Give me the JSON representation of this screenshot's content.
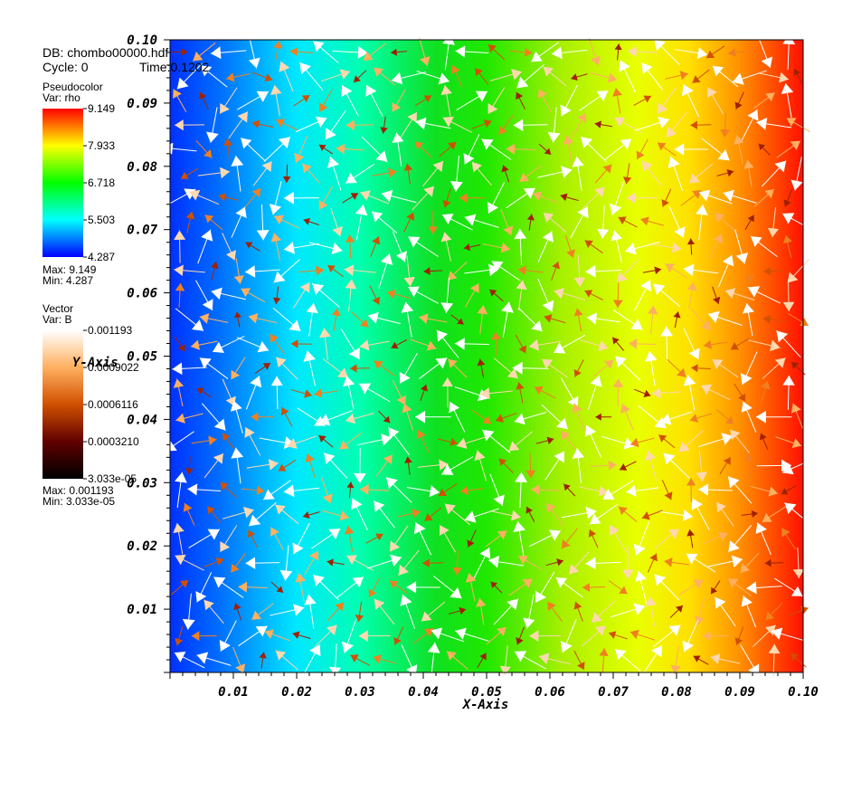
{
  "header": {
    "db": "DB: chombo00000.hdf",
    "cycle": "Cycle: 0",
    "time": "Time:0.1202"
  },
  "pseudocolor_legend": {
    "title": "Pseudocolor",
    "var": "Var: rho",
    "ticks": [
      "9.149",
      "7.933",
      "6.718",
      "5.503",
      "4.287"
    ],
    "max": "Max:  9.149",
    "min": "Min:  4.287",
    "colormap": [
      "#ff0000",
      "#ffff00",
      "#00ff00",
      "#00ffff",
      "#0000ff"
    ]
  },
  "vector_legend": {
    "title": "Vector",
    "var": "Var: B",
    "ticks": [
      "0.001193",
      "0.0009022",
      "0.0006116",
      "0.0003210",
      "3.033e-05"
    ],
    "max": "Max:  0.001193",
    "min": "Min:  3.033e-05",
    "colormap": [
      "#ffffff",
      "#ffb060",
      "#d05000",
      "#600000",
      "#000000"
    ]
  },
  "chart_data": {
    "type": "heatmap",
    "title": "",
    "xlabel": "X-Axis",
    "ylabel": "Y-Axis",
    "xlim": [
      0,
      0.1
    ],
    "ylim": [
      0,
      0.1
    ],
    "x_ticks": [
      "0.01",
      "0.02",
      "0.03",
      "0.04",
      "0.05",
      "0.06",
      "0.07",
      "0.08",
      "0.09",
      "0.10"
    ],
    "y_ticks": [
      "0.01",
      "0.02",
      "0.03",
      "0.04",
      "0.05",
      "0.06",
      "0.07",
      "0.08",
      "0.09",
      "0.10"
    ],
    "scalar_field": {
      "variable": "rho",
      "min": 4.287,
      "max": 9.149,
      "profile_x": [
        0.0,
        0.02,
        0.05,
        0.08,
        0.1
      ],
      "profile_rho": [
        4.287,
        5.503,
        6.718,
        7.933,
        9.149
      ]
    },
    "vector_field": {
      "variable": "B",
      "min": 3.033e-05,
      "max": 0.001193
    }
  }
}
